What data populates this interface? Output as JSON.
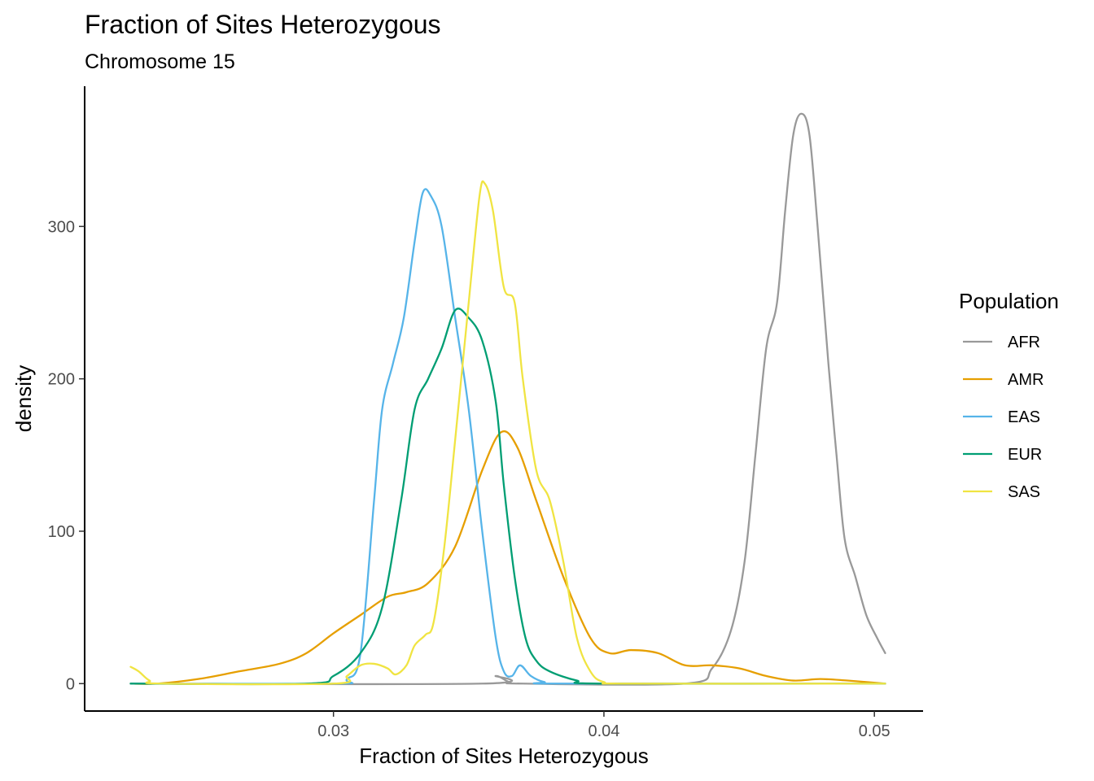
{
  "chart_data": {
    "type": "line",
    "title": "Fraction of Sites Heterozygous",
    "subtitle": "Chromosome 15",
    "xlabel": "Fraction of Sites Heterozygous",
    "ylabel": "density",
    "xlim": [
      0.0208,
      0.0518
    ],
    "ylim": [
      -18,
      392
    ],
    "x_ticks": [
      0.03,
      0.04,
      0.05
    ],
    "x_tick_labels": [
      "0.03",
      "0.04",
      "0.05"
    ],
    "y_ticks": [
      0,
      100,
      200,
      300
    ],
    "y_tick_labels": [
      "0",
      "100",
      "200",
      "300"
    ],
    "grid": false,
    "legend": {
      "title": "Population",
      "position": "right"
    },
    "series": [
      {
        "name": "AFR",
        "color": "#999999",
        "points": [
          [
            0.0225,
            0
          ],
          [
            0.0355,
            0
          ],
          [
            0.036,
            5
          ],
          [
            0.0365,
            1
          ],
          [
            0.037,
            0
          ],
          [
            0.043,
            0
          ],
          [
            0.044,
            10
          ],
          [
            0.0447,
            35
          ],
          [
            0.0452,
            80
          ],
          [
            0.0456,
            150
          ],
          [
            0.046,
            220
          ],
          [
            0.0464,
            250
          ],
          [
            0.0467,
            310
          ],
          [
            0.047,
            360
          ],
          [
            0.0473,
            374
          ],
          [
            0.0476,
            360
          ],
          [
            0.0479,
            300
          ],
          [
            0.0483,
            210
          ],
          [
            0.0486,
            150
          ],
          [
            0.0489,
            95
          ],
          [
            0.0493,
            70
          ],
          [
            0.0497,
            45
          ],
          [
            0.0501,
            30
          ],
          [
            0.0504,
            20
          ]
        ]
      },
      {
        "name": "AMR",
        "color": "#E69F00",
        "points": [
          [
            0.0225,
            0
          ],
          [
            0.0235,
            0
          ],
          [
            0.025,
            3
          ],
          [
            0.0265,
            8
          ],
          [
            0.028,
            13
          ],
          [
            0.029,
            20
          ],
          [
            0.03,
            33
          ],
          [
            0.031,
            45
          ],
          [
            0.032,
            57
          ],
          [
            0.0327,
            60
          ],
          [
            0.0335,
            66
          ],
          [
            0.0345,
            90
          ],
          [
            0.0355,
            140
          ],
          [
            0.0362,
            165
          ],
          [
            0.0368,
            155
          ],
          [
            0.0375,
            120
          ],
          [
            0.0385,
            70
          ],
          [
            0.0395,
            30
          ],
          [
            0.0402,
            20
          ],
          [
            0.041,
            22
          ],
          [
            0.042,
            20
          ],
          [
            0.043,
            12
          ],
          [
            0.044,
            12
          ],
          [
            0.045,
            10
          ],
          [
            0.046,
            5
          ],
          [
            0.047,
            2
          ],
          [
            0.048,
            3
          ],
          [
            0.049,
            2
          ],
          [
            0.0504,
            0
          ]
        ]
      },
      {
        "name": "EAS",
        "color": "#56B4E9",
        "points": [
          [
            0.0225,
            0
          ],
          [
            0.03,
            0
          ],
          [
            0.0305,
            3
          ],
          [
            0.031,
            20
          ],
          [
            0.0315,
            120
          ],
          [
            0.0318,
            180
          ],
          [
            0.0322,
            210
          ],
          [
            0.0326,
            240
          ],
          [
            0.033,
            290
          ],
          [
            0.0333,
            322
          ],
          [
            0.0336,
            320
          ],
          [
            0.034,
            300
          ],
          [
            0.0345,
            240
          ],
          [
            0.035,
            180
          ],
          [
            0.0355,
            100
          ],
          [
            0.036,
            30
          ],
          [
            0.0363,
            8
          ],
          [
            0.0366,
            5
          ],
          [
            0.0369,
            12
          ],
          [
            0.0373,
            5
          ],
          [
            0.0378,
            1
          ],
          [
            0.0385,
            0
          ],
          [
            0.0504,
            0
          ]
        ]
      },
      {
        "name": "EUR",
        "color": "#009E73",
        "points": [
          [
            0.0225,
            0
          ],
          [
            0.029,
            0
          ],
          [
            0.03,
            5
          ],
          [
            0.031,
            20
          ],
          [
            0.0318,
            50
          ],
          [
            0.0325,
            120
          ],
          [
            0.033,
            180
          ],
          [
            0.0335,
            200
          ],
          [
            0.034,
            220
          ],
          [
            0.0345,
            245
          ],
          [
            0.035,
            240
          ],
          [
            0.0355,
            225
          ],
          [
            0.036,
            185
          ],
          [
            0.0363,
            130
          ],
          [
            0.0367,
            70
          ],
          [
            0.0371,
            30
          ],
          [
            0.0375,
            15
          ],
          [
            0.038,
            8
          ],
          [
            0.039,
            2
          ],
          [
            0.04,
            0
          ],
          [
            0.0504,
            0
          ]
        ]
      },
      {
        "name": "SAS",
        "color": "#F0E442",
        "points": [
          [
            0.0225,
            11
          ],
          [
            0.0228,
            8
          ],
          [
            0.0232,
            2
          ],
          [
            0.0237,
            0
          ],
          [
            0.03,
            0
          ],
          [
            0.0305,
            5
          ],
          [
            0.031,
            12
          ],
          [
            0.0315,
            13
          ],
          [
            0.032,
            10
          ],
          [
            0.0323,
            6
          ],
          [
            0.0327,
            12
          ],
          [
            0.033,
            25
          ],
          [
            0.0334,
            32
          ],
          [
            0.0337,
            40
          ],
          [
            0.0341,
            90
          ],
          [
            0.0345,
            160
          ],
          [
            0.035,
            250
          ],
          [
            0.0354,
            320
          ],
          [
            0.0356,
            328
          ],
          [
            0.0359,
            310
          ],
          [
            0.0363,
            260
          ],
          [
            0.0367,
            250
          ],
          [
            0.037,
            200
          ],
          [
            0.0375,
            140
          ],
          [
            0.038,
            120
          ],
          [
            0.0385,
            80
          ],
          [
            0.039,
            30
          ],
          [
            0.0395,
            8
          ],
          [
            0.04,
            1
          ],
          [
            0.041,
            0
          ],
          [
            0.0504,
            0
          ]
        ]
      }
    ]
  }
}
